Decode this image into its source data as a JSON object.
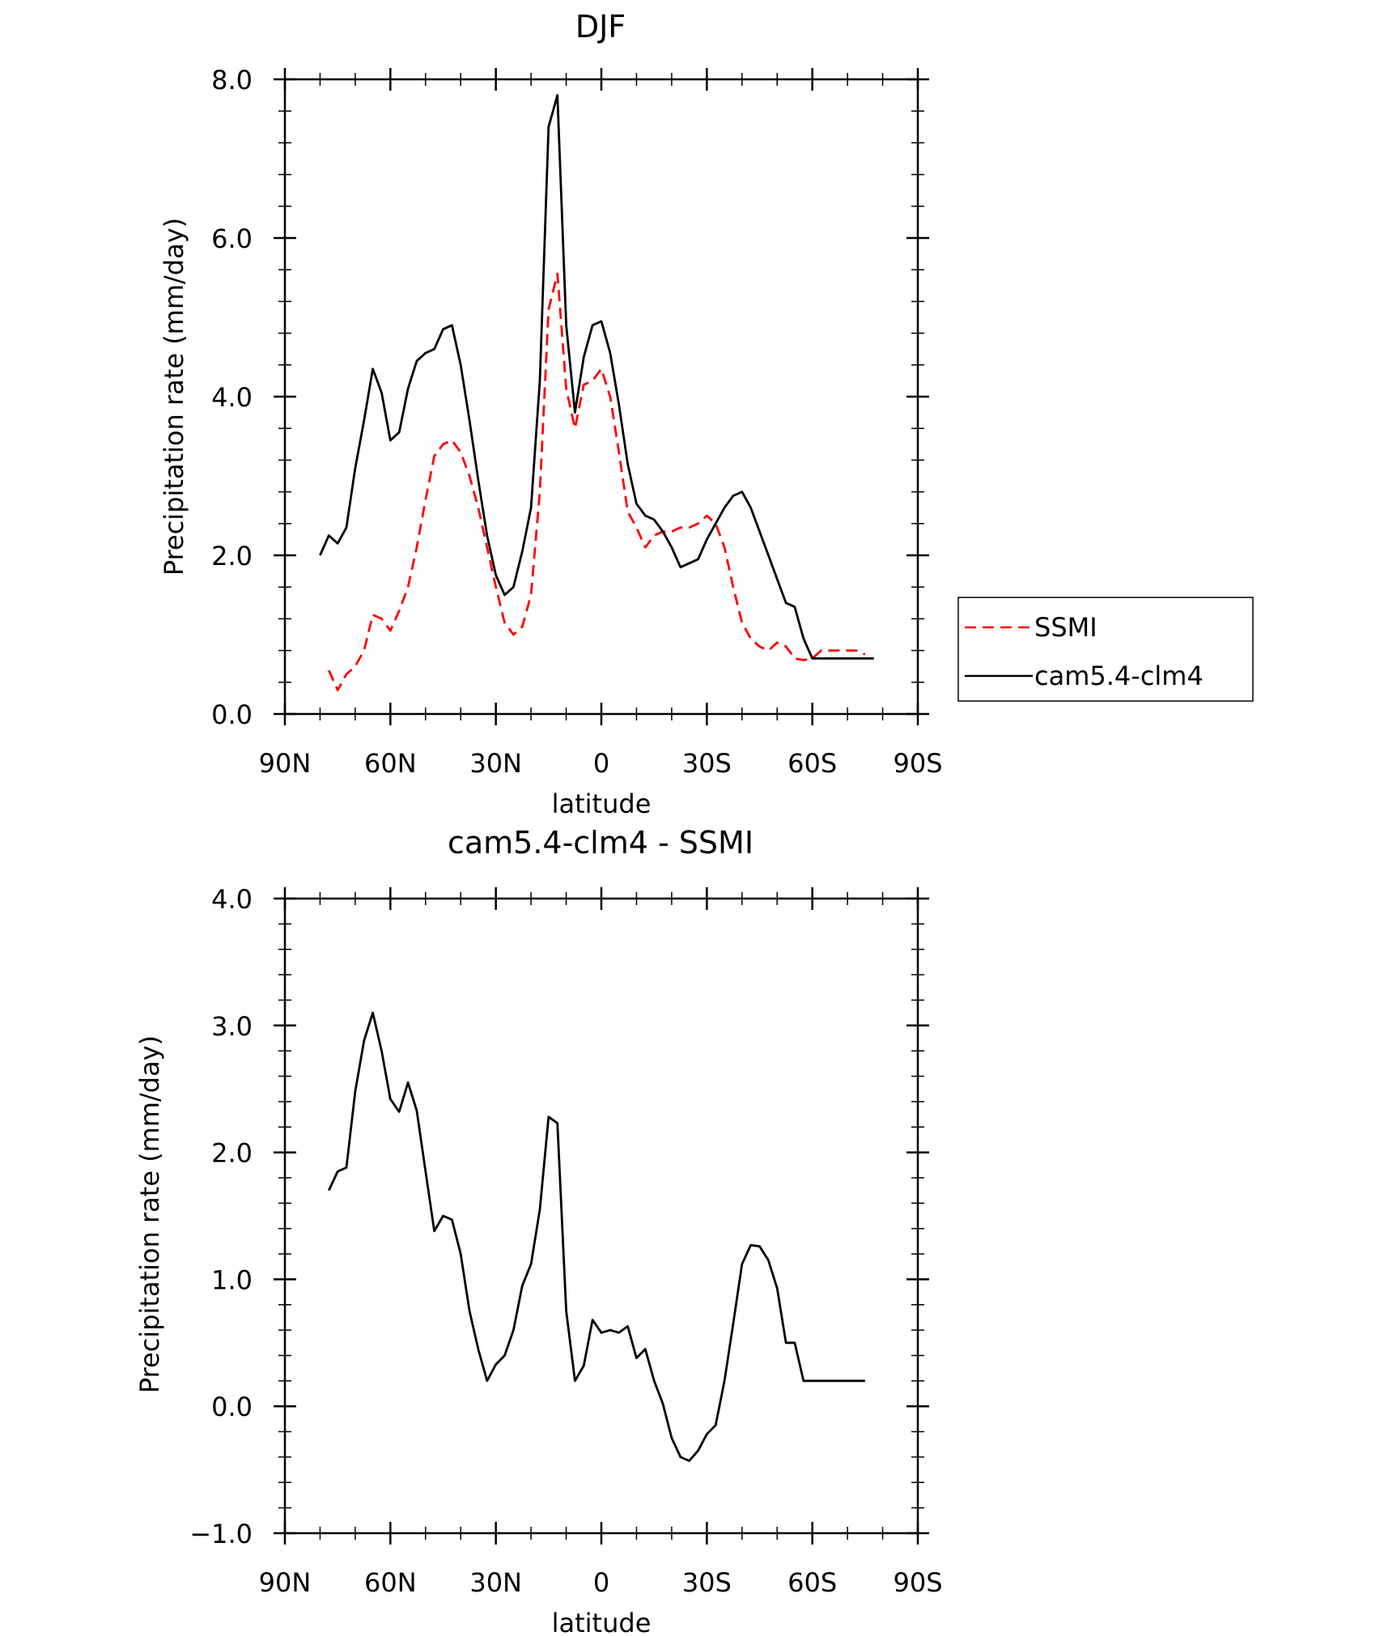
{
  "chart_data": [
    {
      "type": "line",
      "title": "DJF",
      "xlabel": "latitude",
      "ylabel": "Precipitation rate (mm/day)",
      "ylim": [
        0,
        8
      ],
      "yticks": [
        "0.0",
        "2.0",
        "4.0",
        "6.0",
        "8.0"
      ],
      "xlim": [
        90,
        -90
      ],
      "xticks": [
        {
          "value": 90,
          "label": "90N"
        },
        {
          "value": 60,
          "label": "60N"
        },
        {
          "value": 30,
          "label": "30N"
        },
        {
          "value": 0,
          "label": "0"
        },
        {
          "value": -30,
          "label": "30S"
        },
        {
          "value": -60,
          "label": "60S"
        },
        {
          "value": -90,
          "label": "90S"
        }
      ],
      "legend": {
        "placement": "right"
      },
      "series": [
        {
          "name": "SSMI",
          "color": "#ff0000",
          "dash": "dashed",
          "x": [
            77.5,
            75,
            72.5,
            70,
            67.5,
            65,
            62.5,
            60,
            57.5,
            55,
            52.5,
            50,
            47.5,
            45,
            42.5,
            40,
            37.5,
            35,
            32.5,
            30,
            27.5,
            25,
            22.5,
            20,
            17.5,
            15,
            12.5,
            10,
            7.5,
            5,
            2.5,
            0,
            -2.5,
            -5,
            -7.5,
            -10,
            -12.5,
            -15,
            -17.5,
            -20,
            -22.5,
            -25,
            -27.5,
            -30,
            -32.5,
            -35,
            -37.5,
            -40,
            -42.5,
            -45,
            -47.5,
            -50,
            -52.5,
            -55,
            -57.5,
            -60,
            -62.5,
            -65,
            -67.5,
            -70,
            -72.5,
            -75
          ],
          "values": [
            0.55,
            0.3,
            0.5,
            0.6,
            0.8,
            1.25,
            1.2,
            1.05,
            1.3,
            1.6,
            2.1,
            2.7,
            3.25,
            3.4,
            3.45,
            3.3,
            3.0,
            2.6,
            2.1,
            1.6,
            1.15,
            1.0,
            1.1,
            1.5,
            2.8,
            5.1,
            5.55,
            4.1,
            3.6,
            4.15,
            4.2,
            4.35,
            4.0,
            3.3,
            2.55,
            2.35,
            2.1,
            2.25,
            2.3,
            2.3,
            2.35,
            2.35,
            2.4,
            2.5,
            2.4,
            2.1,
            1.6,
            1.15,
            0.95,
            0.85,
            0.8,
            0.9,
            0.85,
            0.7,
            0.68,
            0.7,
            0.8,
            0.8,
            0.8,
            0.8,
            0.8,
            0.75
          ]
        },
        {
          "name": "cam5.4-clm4",
          "color": "#000000",
          "dash": "solid",
          "x": [
            80,
            77.5,
            75,
            72.5,
            70,
            67.5,
            65,
            62.5,
            60,
            57.5,
            55,
            52.5,
            50,
            47.5,
            45,
            42.5,
            40,
            37.5,
            35,
            32.5,
            30,
            27.5,
            25,
            22.5,
            20,
            17.5,
            15,
            12.5,
            10,
            7.5,
            5,
            2.5,
            0,
            -2.5,
            -5,
            -7.5,
            -10,
            -12.5,
            -15,
            -17.5,
            -20,
            -22.5,
            -25,
            -27.5,
            -30,
            -32.5,
            -35,
            -37.5,
            -40,
            -42.5,
            -45,
            -47.5,
            -50,
            -52.5,
            -55,
            -57.5,
            -60,
            -62.5,
            -65,
            -67.5,
            -70,
            -72.5,
            -75,
            -77.5
          ],
          "values": [
            2.0,
            2.25,
            2.15,
            2.35,
            3.1,
            3.7,
            4.35,
            4.05,
            3.45,
            3.55,
            4.1,
            4.45,
            4.55,
            4.6,
            4.85,
            4.9,
            4.4,
            3.7,
            2.95,
            2.25,
            1.75,
            1.5,
            1.6,
            2.05,
            2.6,
            4.2,
            7.4,
            7.8,
            4.9,
            3.8,
            4.5,
            4.9,
            4.95,
            4.55,
            3.9,
            3.15,
            2.65,
            2.5,
            2.45,
            2.3,
            2.1,
            1.85,
            1.9,
            1.95,
            2.2,
            2.4,
            2.6,
            2.75,
            2.8,
            2.6,
            2.3,
            2.0,
            1.7,
            1.4,
            1.35,
            0.95,
            0.7,
            0.7,
            0.7,
            0.7,
            0.7,
            0.7,
            0.7,
            0.7
          ]
        }
      ]
    },
    {
      "type": "line",
      "title": "cam5.4-clm4 - SSMI",
      "xlabel": "latitude",
      "ylabel": "Precipitation rate (mm/day)",
      "ylim": [
        -1,
        4
      ],
      "yticks": [
        "−1.0",
        "0.0",
        "1.0",
        "2.0",
        "3.0",
        "4.0"
      ],
      "xlim": [
        90,
        -90
      ],
      "xticks": [
        {
          "value": 90,
          "label": "90N"
        },
        {
          "value": 60,
          "label": "60N"
        },
        {
          "value": 30,
          "label": "30N"
        },
        {
          "value": 0,
          "label": "0"
        },
        {
          "value": -30,
          "label": "30S"
        },
        {
          "value": -60,
          "label": "60S"
        },
        {
          "value": -90,
          "label": "90S"
        }
      ],
      "series": [
        {
          "color": "#000000",
          "dash": "solid",
          "x": [
            77.5,
            75,
            72.5,
            70,
            67.5,
            65,
            62.5,
            60,
            57.5,
            55,
            52.5,
            50,
            47.5,
            45,
            42.5,
            40,
            37.5,
            35,
            32.5,
            30,
            27.5,
            25,
            22.5,
            20,
            17.5,
            15,
            12.5,
            10,
            7.5,
            5,
            2.5,
            0,
            -2.5,
            -5,
            -7.5,
            -10,
            -12.5,
            -15,
            -17.5,
            -20,
            -22.5,
            -25,
            -27.5,
            -30,
            -32.5,
            -35,
            -37.5,
            -40,
            -42.5,
            -45,
            -47.5,
            -50,
            -52.5,
            -55,
            -57.5,
            -60,
            -62.5,
            -65,
            -67.5,
            -70,
            -72.5,
            -75
          ],
          "values": [
            1.7,
            1.85,
            1.88,
            2.48,
            2.88,
            3.1,
            2.8,
            2.42,
            2.32,
            2.55,
            2.33,
            1.85,
            1.38,
            1.5,
            1.47,
            1.2,
            0.75,
            0.45,
            0.2,
            0.33,
            0.4,
            0.6,
            0.95,
            1.12,
            1.55,
            2.28,
            2.23,
            0.75,
            0.2,
            0.32,
            0.68,
            0.58,
            0.6,
            0.58,
            0.63,
            0.38,
            0.45,
            0.2,
            0.02,
            -0.25,
            -0.4,
            -0.43,
            -0.35,
            -0.22,
            -0.15,
            0.2,
            0.65,
            1.12,
            1.27,
            1.26,
            1.15,
            0.93,
            0.5,
            0.5,
            0.2,
            0.2,
            0.2,
            0.2,
            0.2,
            0.2,
            0.2,
            0.2
          ]
        }
      ]
    }
  ]
}
